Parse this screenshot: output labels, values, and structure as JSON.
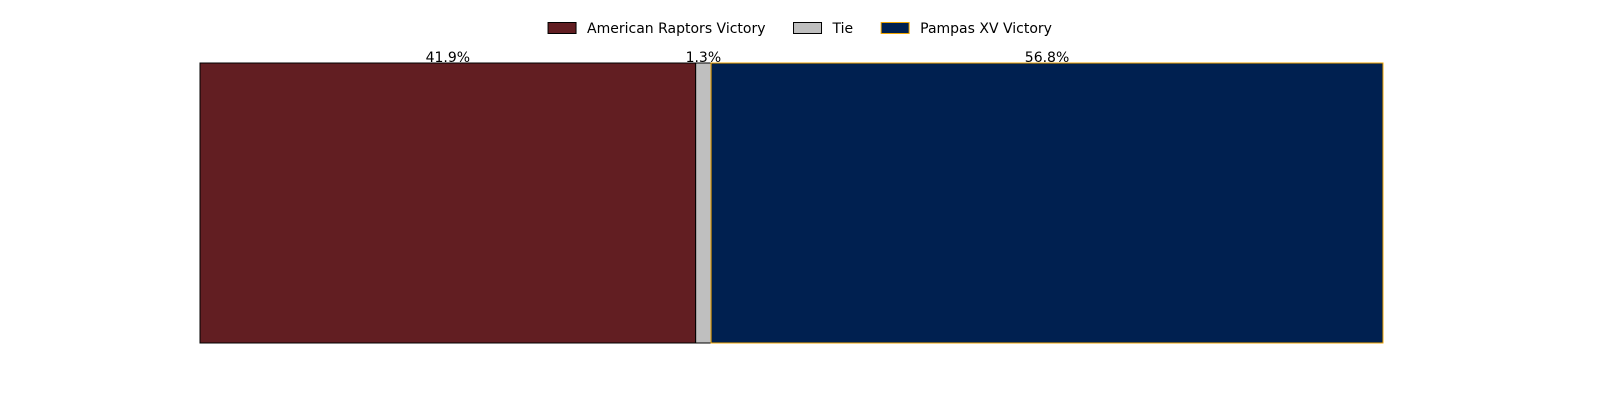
{
  "chart_data": {
    "type": "bar",
    "orientation": "horizontal",
    "stacked": true,
    "title": "",
    "xlabel": "",
    "ylabel": "",
    "xlim": [
      0,
      100
    ],
    "unit": "%",
    "grid": false,
    "legend": "top-center",
    "axes_visible": false,
    "series": [
      {
        "name": "American Raptors Victory",
        "value": 41.9,
        "label": "41.9%",
        "color": "#621e22",
        "edge_color": "#000000"
      },
      {
        "name": "Tie",
        "value": 1.3,
        "label": "1.3%",
        "color": "#bfbfbf",
        "edge_color": "#000000"
      },
      {
        "name": "Pampas XV Victory",
        "value": 56.8,
        "label": "56.8%",
        "color": "#002050",
        "edge_color": "#f0a500"
      }
    ]
  }
}
